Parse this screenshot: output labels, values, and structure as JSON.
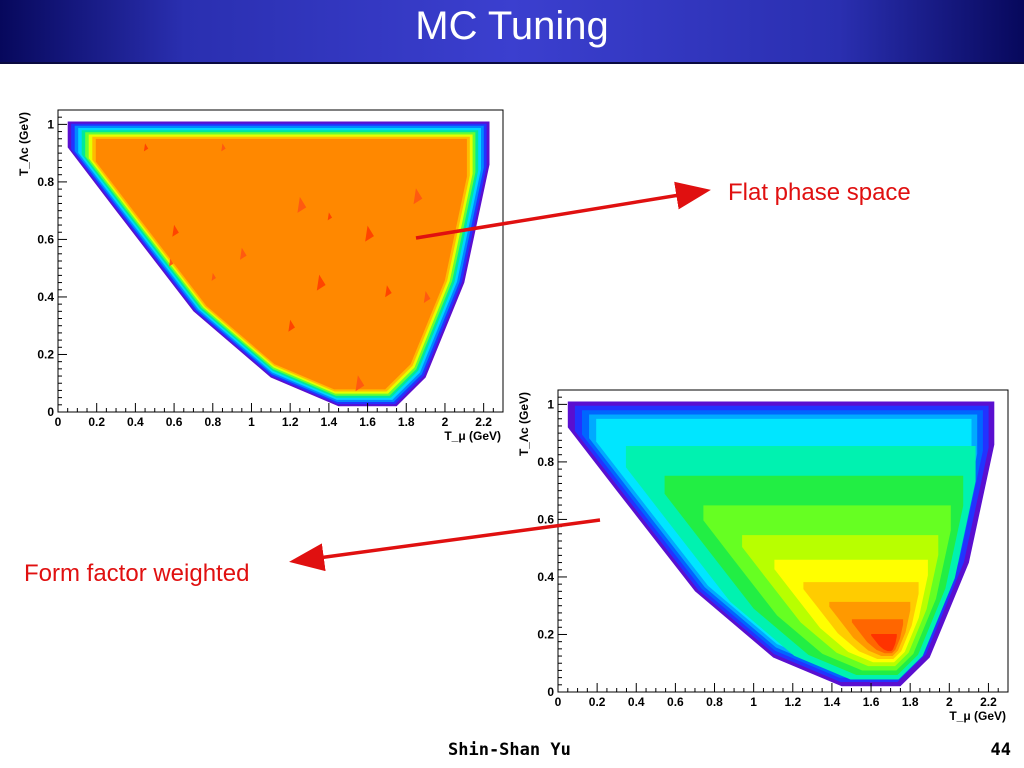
{
  "slide": {
    "title": "MC Tuning",
    "author": "Shin-Shan Yu",
    "page_number": "44",
    "colors": {
      "title_bar": "#2a2fb0",
      "annotation": "#e01010"
    }
  },
  "annotations": {
    "top": "Flat phase space",
    "bottom": "Form factor weighted"
  },
  "chart_data": [
    {
      "type": "heatmap",
      "title": "",
      "xlabel": "T_μ (GeV)",
      "ylabel": "T_Λc (GeV)",
      "xlim": [
        0,
        2.3
      ],
      "ylim": [
        0,
        1.05
      ],
      "x_ticks": [
        "0",
        "0.2",
        "0.4",
        "0.6",
        "0.8",
        "1",
        "1.2",
        "1.4",
        "1.6",
        "1.8",
        "2",
        "2.2"
      ],
      "y_ticks": [
        "0",
        "0.2",
        "0.4",
        "0.6",
        "0.8",
        "1"
      ],
      "region_boundary": [
        [
          0.05,
          1.01
        ],
        [
          2.23,
          1.01
        ],
        [
          2.23,
          0.86
        ],
        [
          2.1,
          0.45
        ],
        [
          1.9,
          0.12
        ],
        [
          1.75,
          0.02
        ],
        [
          1.45,
          0.02
        ],
        [
          1.1,
          0.12
        ],
        [
          0.7,
          0.35
        ],
        [
          0.3,
          0.7
        ],
        [
          0.05,
          0.92
        ]
      ],
      "distribution": "flat"
    },
    {
      "type": "heatmap",
      "title": "",
      "xlabel": "T_μ (GeV)",
      "ylabel": "T_Λc (GeV)",
      "xlim": [
        0,
        2.3
      ],
      "ylim": [
        0,
        1.05
      ],
      "x_ticks": [
        "0",
        "0.2",
        "0.4",
        "0.6",
        "0.8",
        "1",
        "1.2",
        "1.4",
        "1.6",
        "1.8",
        "2",
        "2.2"
      ],
      "y_ticks": [
        "0",
        "0.2",
        "0.4",
        "0.6",
        "0.8",
        "1"
      ],
      "region_boundary": [
        [
          0.05,
          1.01
        ],
        [
          2.23,
          1.01
        ],
        [
          2.23,
          0.86
        ],
        [
          2.1,
          0.45
        ],
        [
          1.9,
          0.12
        ],
        [
          1.75,
          0.02
        ],
        [
          1.45,
          0.02
        ],
        [
          1.1,
          0.12
        ],
        [
          0.7,
          0.35
        ],
        [
          0.3,
          0.7
        ],
        [
          0.05,
          0.92
        ]
      ],
      "distribution": "form-factor weighted",
      "peak": [
        1.7,
        0.15
      ]
    }
  ]
}
